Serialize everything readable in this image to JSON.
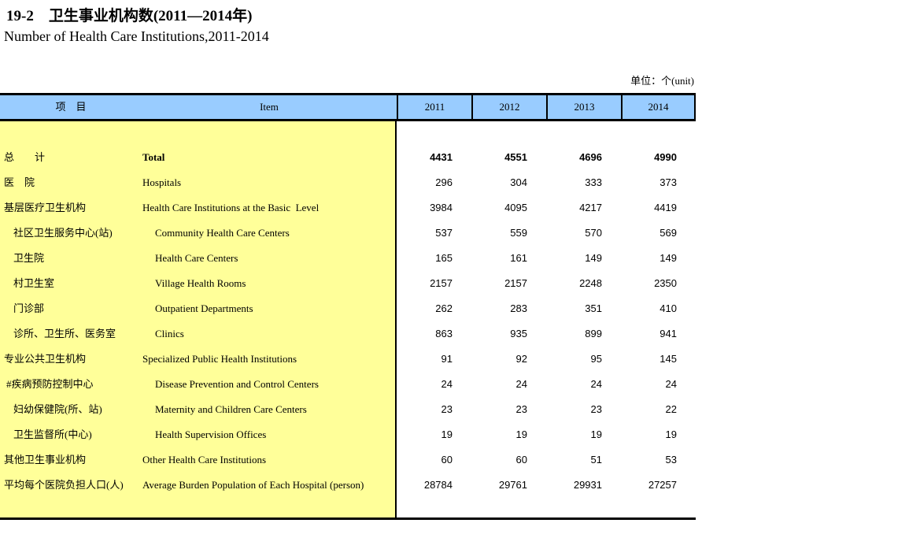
{
  "page": {
    "title_zh": "19-2　卫生事业机构数(2011—2014年)",
    "title_en": "Number of Health Care Institutions,2011-2014",
    "unit_label": "单位：个(unit)"
  },
  "colors": {
    "header_bg": "#99CCFF",
    "left_panel_bg": "#FFFF99",
    "border": "#000000"
  },
  "table": {
    "header": {
      "item_zh": "项　目",
      "item_en": "Item",
      "years": [
        "2011",
        "2012",
        "2013",
        "2014"
      ]
    },
    "rows": [
      {
        "zh": "总　　计",
        "en": "Total",
        "values": [
          "4431",
          "4551",
          "4696",
          "4990"
        ],
        "bold": true,
        "indent": 0
      },
      {
        "zh": "医　院",
        "en": "Hospitals",
        "values": [
          "296",
          "304",
          "333",
          "373"
        ],
        "bold": false,
        "indent": 0
      },
      {
        "zh": "基层医疗卫生机构",
        "en": "Health Care Institutions at the Basic  Level",
        "values": [
          "3984",
          "4095",
          "4217",
          "4419"
        ],
        "bold": false,
        "indent": 0
      },
      {
        "zh": "社区卫生服务中心(站)",
        "en": "Community Health Care Centers",
        "values": [
          "537",
          "559",
          "570",
          "569"
        ],
        "bold": false,
        "indent": 1
      },
      {
        "zh": "卫生院",
        "en": "Health Care Centers",
        "values": [
          "165",
          "161",
          "149",
          "149"
        ],
        "bold": false,
        "indent": 1
      },
      {
        "zh": "村卫生室",
        "en": "Village Health Rooms",
        "values": [
          "2157",
          "2157",
          "2248",
          "2350"
        ],
        "bold": false,
        "indent": 1
      },
      {
        "zh": "门诊部",
        "en": "Outpatient Departments",
        "values": [
          "262",
          "283",
          "351",
          "410"
        ],
        "bold": false,
        "indent": 1
      },
      {
        "zh": "诊所、卫生所、医务室",
        "en": "Clinics",
        "values": [
          "863",
          "935",
          "899",
          "941"
        ],
        "bold": false,
        "indent": 1
      },
      {
        "zh": "专业公共卫生机构",
        "en": "Specialized Public Health Institutions",
        "values": [
          "91",
          "92",
          "95",
          "145"
        ],
        "bold": false,
        "indent": 0
      },
      {
        "zh": "#疾病预防控制中心",
        "en": "Disease Prevention and Control Centers",
        "values": [
          "24",
          "24",
          "24",
          "24"
        ],
        "bold": false,
        "indent": 2
      },
      {
        "zh": "妇幼保健院(所、站)",
        "en": "Maternity and Children Care Centers",
        "values": [
          "23",
          "23",
          "23",
          "22"
        ],
        "bold": false,
        "indent": 1
      },
      {
        "zh": "卫生监督所(中心)",
        "en": "Health Supervision Offices",
        "values": [
          "19",
          "19",
          "19",
          "19"
        ],
        "bold": false,
        "indent": 1
      },
      {
        "zh": "其他卫生事业机构",
        "en": "Other Health Care Institutions",
        "values": [
          "60",
          "60",
          "51",
          "53"
        ],
        "bold": false,
        "indent": 0
      },
      {
        "zh": "平均每个医院负担人口(人)",
        "en": "Average Burden Population of Each Hospital (person)",
        "values": [
          "28784",
          "29761",
          "29931",
          "27257"
        ],
        "bold": false,
        "indent": 0
      }
    ]
  }
}
